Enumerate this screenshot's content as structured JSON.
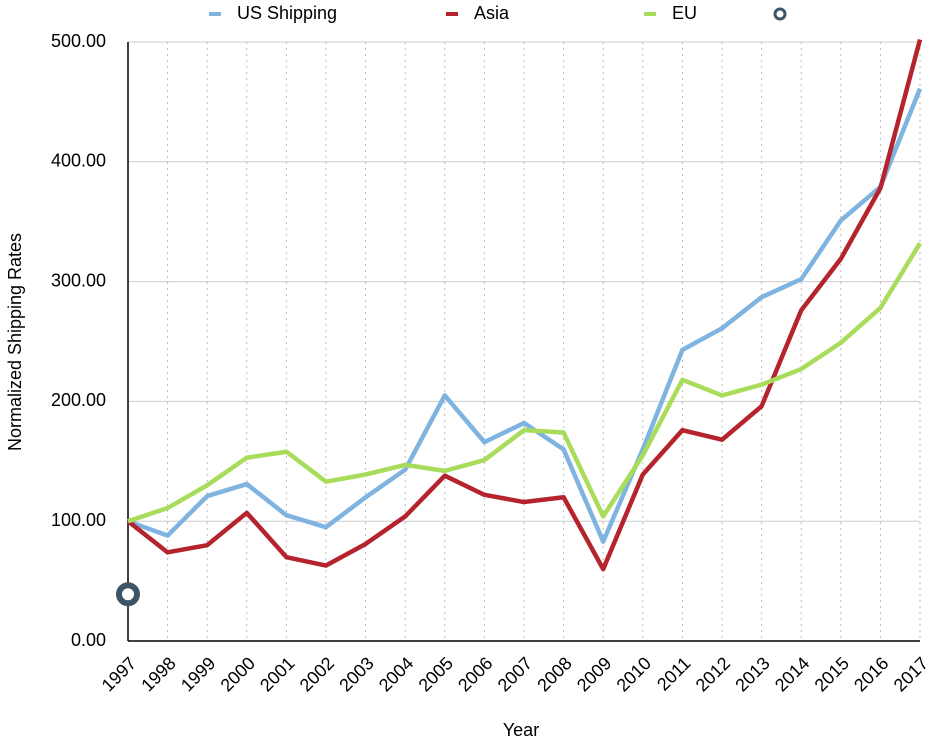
{
  "chart_data": {
    "type": "line",
    "x_label": "Year",
    "y_label": "Normalized Shipping Rates",
    "categories": [
      "1997",
      "1998",
      "1999",
      "2000",
      "2001",
      "2002",
      "2003",
      "2004",
      "2005",
      "2006",
      "2007",
      "2008",
      "2009",
      "2010",
      "2011",
      "2012",
      "2013",
      "2014",
      "2015",
      "2016",
      "2017"
    ],
    "series": [
      {
        "name": "US Shipping",
        "color": "#7fb3e0",
        "values": [
          100,
          88,
          121,
          131,
          105,
          95,
          120,
          143,
          205,
          166,
          182,
          160,
          83,
          160,
          243,
          261,
          287,
          302,
          351,
          379,
          461
        ]
      },
      {
        "name": "Asia",
        "color": "#b5232d",
        "values": [
          100,
          74,
          80,
          107,
          70,
          63,
          81,
          104,
          138,
          122,
          116,
          120,
          60,
          139,
          176,
          168,
          196,
          276,
          319,
          378,
          502
        ]
      },
      {
        "name": "EU",
        "color": "#a8dc5a",
        "values": [
          100,
          111,
          130,
          153,
          158,
          133,
          139,
          147,
          142,
          151,
          176,
          174,
          104,
          155,
          218,
          205,
          214,
          227,
          249,
          278,
          332
        ]
      },
      {
        "color": "#3d5566",
        "marker": "circle",
        "values": [
          39,
          null,
          null,
          null,
          null,
          null,
          null,
          null,
          null,
          null,
          null,
          null,
          null,
          null,
          null,
          null,
          null,
          null,
          null,
          null,
          null
        ]
      }
    ],
    "ylim": [
      0,
      500
    ],
    "yticks": [
      {
        "value": 0,
        "label": "0.00"
      },
      {
        "value": 100,
        "label": "100.00"
      },
      {
        "value": 200,
        "label": "200.00"
      },
      {
        "value": 300,
        "label": "300.00"
      },
      {
        "value": 400,
        "label": "400.00"
      },
      {
        "value": 500,
        "label": "500.00"
      }
    ],
    "grid": true
  }
}
